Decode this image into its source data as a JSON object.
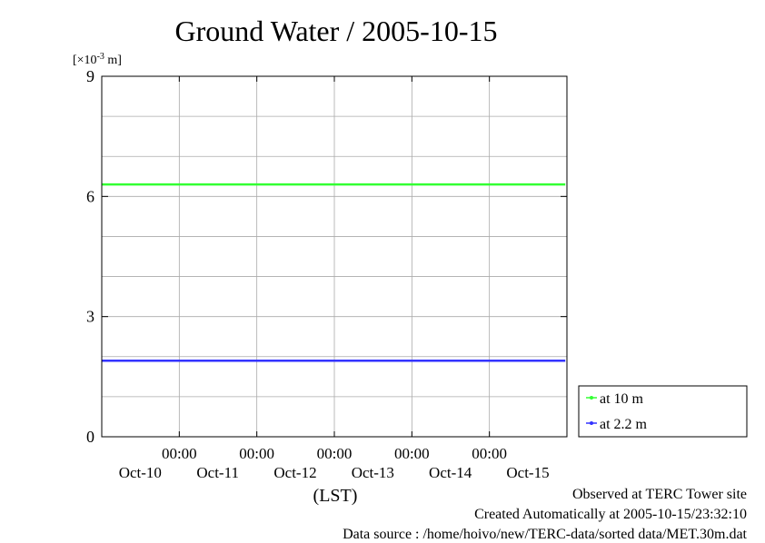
{
  "chart_data": {
    "type": "line",
    "title": "Ground Water / 2005-10-15",
    "ylabel_unit": "[×10",
    "ylabel_exp": "-3",
    "ylabel_tail": " m]",
    "xlabel": "(LST)",
    "ylim": [
      0,
      9
    ],
    "yticks": [
      0,
      3,
      6,
      9
    ],
    "xlim": [
      "2005-10-09",
      "2005-10-15"
    ],
    "xticks": [
      {
        "date": "2005-10-10",
        "time": "00:00",
        "day": "Oct-10"
      },
      {
        "date": "2005-10-11",
        "time": "00:00",
        "day": "Oct-11"
      },
      {
        "date": "2005-10-12",
        "time": "00:00",
        "day": "Oct-12"
      },
      {
        "date": "2005-10-13",
        "time": "00:00",
        "day": "Oct-13"
      },
      {
        "date": "2005-10-14",
        "time": "00:00",
        "day": "Oct-14"
      },
      {
        "date": "2005-10-15",
        "time": "",
        "day": "Oct-15"
      }
    ],
    "grid": true,
    "legend_position": "right-bottom",
    "series": [
      {
        "name": "at 10 m",
        "color": "#33ff33",
        "x": [
          "2005-10-09 00:00",
          "2005-10-14 23:30"
        ],
        "y": [
          6.3,
          6.3
        ]
      },
      {
        "name": "at 2.2 m",
        "color": "#3333ff",
        "x": [
          "2005-10-09 00:00",
          "2005-10-14 23:30"
        ],
        "y": [
          1.9,
          1.9
        ]
      }
    ]
  },
  "footer": {
    "observed": "Observed at TERC Tower site",
    "created": "Created Automatically at 2005-10-15/23:32:10",
    "source": "Data source : /home/hoivo/new/TERC-data/sorted  data/MET.30m.dat"
  }
}
